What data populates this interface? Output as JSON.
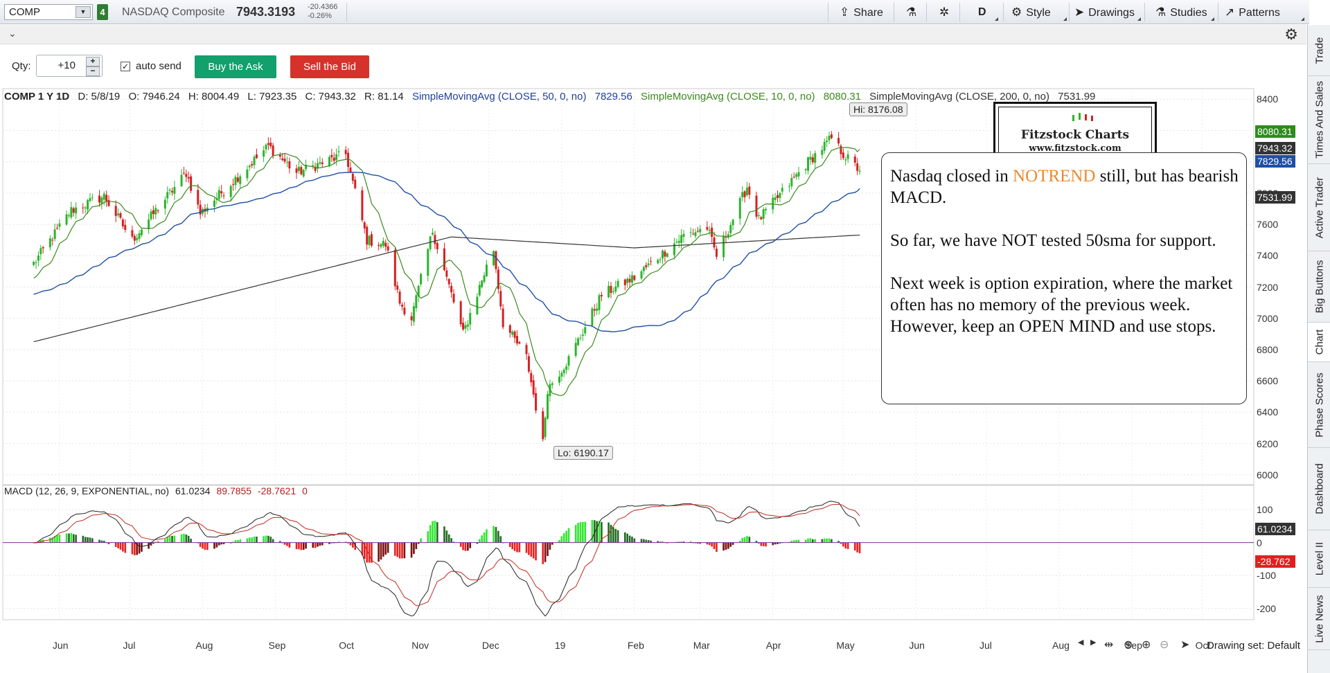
{
  "topbar": {
    "symbol": "COMP",
    "link_number": "4",
    "name": "NASDAQ Composite",
    "price": "7943.3193",
    "change": "-20.4366",
    "change_pct": "-0.26%",
    "share": "Share",
    "period": "D",
    "style": "Style",
    "drawings": "Drawings",
    "studies": "Studies",
    "patterns": "Patterns"
  },
  "order": {
    "qty_label": "Qty:",
    "qty_value": "+10",
    "auto_send": "auto send",
    "buy": "Buy the Ask",
    "sell": "Sell the Bid"
  },
  "header": {
    "symbol": "COMP 1 Y 1D",
    "date": "D: 5/8/19",
    "open": "O: 7946.24",
    "high": "H: 8004.49",
    "low": "L: 7923.35",
    "close": "C: 7943.32",
    "range": "R: 81.14",
    "sma50_label": "SimpleMovingAvg (CLOSE, 50, 0, no)",
    "sma50_value": "7829.56",
    "sma10_label": "SimpleMovingAvg (CLOSE, 10, 0, no)",
    "sma10_value": "8080.31",
    "sma200_label": "SimpleMovingAvg (CLOSE, 200, 0, no)",
    "sma200_value": "7531.99"
  },
  "macd_header": {
    "label": "MACD (12, 26, 9, EXPONENTIAL, no)",
    "value": "61.0234",
    "avg": "89.7855",
    "diff": "-28.7621",
    "zero": "0"
  },
  "price_tags": {
    "sma10": "8080.31",
    "close": "7943.32",
    "sma50": "7829.56",
    "sma200": "7531.99",
    "macd_value": "61.0234",
    "macd_diff": "-28.762"
  },
  "hi_label": "Hi: 8176.08",
  "lo_label": "Lo: 6190.17",
  "logo": {
    "name": "Fitzstock Charts",
    "url": "www.fitzstock.com"
  },
  "note": {
    "line1_a": "Nasdaq closed in ",
    "line1_b": "NOTREND",
    "line1_c": " still, but has bearish MACD.",
    "line2": "So far, we have NOT tested 50sma for support.",
    "line3": "Next week is option expiration, where the market often has no memory of the previous week.  However, keep an OPEN MIND and use stops."
  },
  "colors": {
    "up": "#2bb52b",
    "down": "#d42020",
    "sma10": "#3a8a1b",
    "sma50": "#1f4fa5",
    "sma200": "#333333",
    "macd": "#222222",
    "avg": "#c0281e",
    "zero_line": "#7a2c91"
  },
  "drawing_set": "Drawing set: Default",
  "side_tabs": [
    "Trade",
    "Times And Sales",
    "Active Trader",
    "Big Buttons",
    "Chart",
    "Phase Scores",
    "Dashboard",
    "Level II",
    "Live News"
  ],
  "chart_data": [
    {
      "type": "candlestick",
      "title": "COMP 1 Y 1D",
      "x_ticks": [
        "Jun",
        "Jul",
        "Aug",
        "Sep",
        "Oct",
        "Nov",
        "Dec",
        "19",
        "Feb",
        "Mar",
        "Apr",
        "May",
        "Jun",
        "Jul",
        "Aug",
        "Sep",
        "Oct"
      ],
      "y_ticks": [
        6000,
        6200,
        6400,
        6600,
        6800,
        7000,
        7200,
        7400,
        7600,
        7800,
        8000,
        8200,
        8400
      ],
      "ylim": [
        5950,
        8450
      ],
      "close_path": [
        [
          "2018-05-21",
          7350
        ],
        [
          "2018-06-06",
          7690
        ],
        [
          "2018-06-20",
          7780
        ],
        [
          "2018-07-02",
          7500
        ],
        [
          "2018-07-25",
          7930
        ],
        [
          "2018-07-31",
          7670
        ],
        [
          "2018-08-29",
          8100
        ],
        [
          "2018-09-10",
          7930
        ],
        [
          "2018-10-01",
          8050
        ],
        [
          "2018-10-10",
          7500
        ],
        [
          "2018-10-18",
          7470
        ],
        [
          "2018-10-24",
          7100
        ],
        [
          "2018-10-29",
          7000
        ],
        [
          "2018-11-07",
          7560
        ],
        [
          "2018-11-20",
          6900
        ],
        [
          "2018-11-30",
          7330
        ],
        [
          "2018-12-03",
          7440
        ],
        [
          "2018-12-07",
          6970
        ],
        [
          "2018-12-17",
          6750
        ],
        [
          "2018-12-24",
          6200
        ],
        [
          "2018-12-26",
          6550
        ],
        [
          "2019-01-04",
          6740
        ],
        [
          "2019-01-18",
          7150
        ],
        [
          "2019-02-01",
          7260
        ],
        [
          "2019-02-22",
          7530
        ],
        [
          "2019-03-04",
          7580
        ],
        [
          "2019-03-08",
          7400
        ],
        [
          "2019-03-21",
          7840
        ],
        [
          "2019-03-26",
          7630
        ],
        [
          "2019-04-16",
          8000
        ],
        [
          "2019-04-26",
          8150
        ],
        [
          "2019-05-01",
          8050
        ],
        [
          "2019-05-08",
          7943
        ]
      ],
      "hi": 8176.08,
      "lo": 6190.17,
      "sma10_last": 8080.31,
      "sma50_last": 7829.56,
      "sma200_last": 7531.99
    },
    {
      "type": "macd",
      "y_ticks": [
        100,
        0,
        -100,
        -200
      ],
      "ylim": [
        -230,
        140
      ],
      "macd_last": 61.0234,
      "avg_last": 89.7855,
      "diff_last": -28.7621
    }
  ]
}
